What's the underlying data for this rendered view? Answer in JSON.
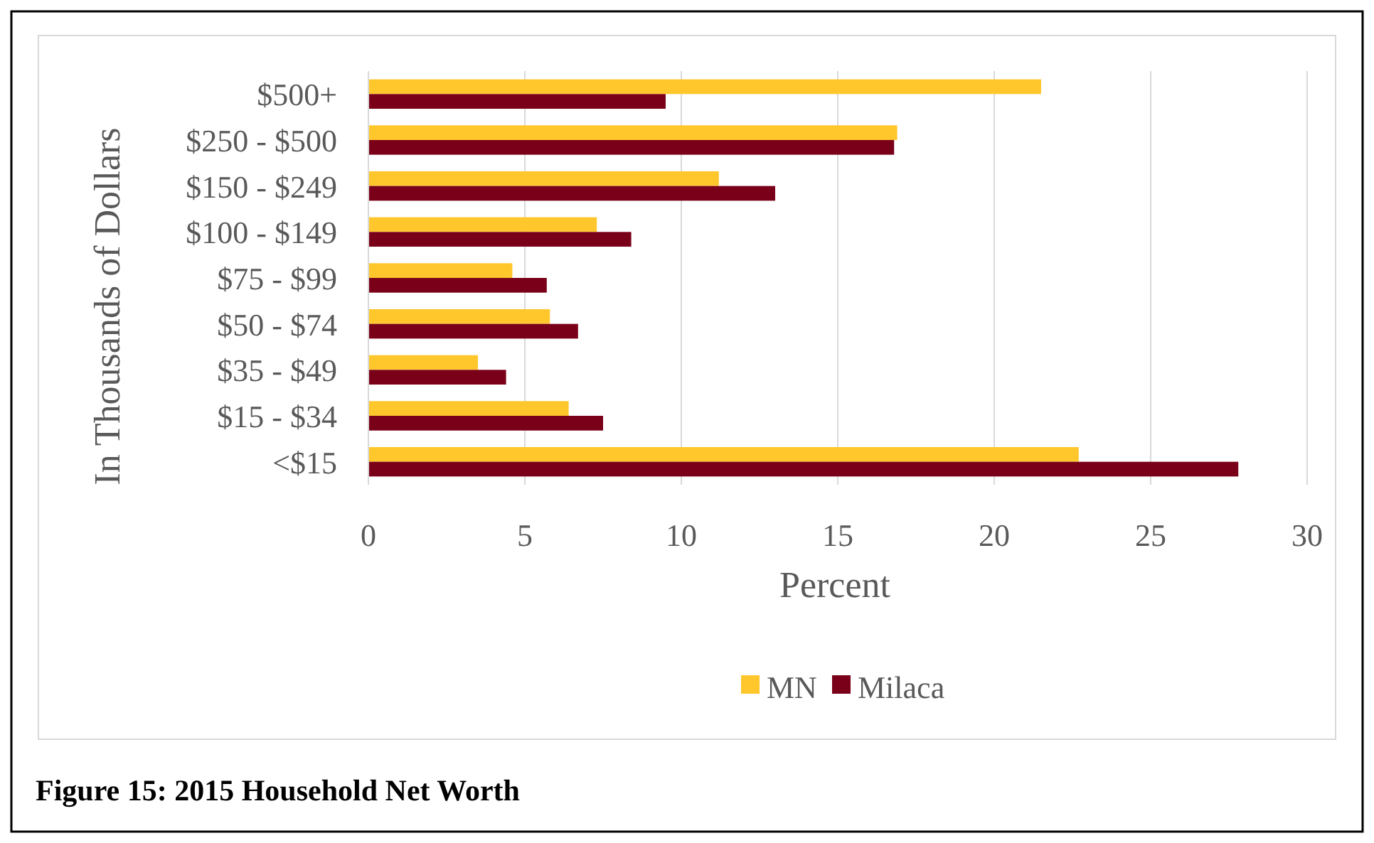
{
  "chart_data": {
    "type": "bar",
    "orientation": "horizontal",
    "xlabel": "Percent",
    "ylabel": "In Thousands of Dollars",
    "categories": [
      "$500+",
      "$250 - $500",
      "$150 - $249",
      "$100 - $149",
      "$75 - $99",
      "$50 - $74",
      "$35 - $49",
      "$15 - $34",
      "<$15"
    ],
    "series": [
      {
        "name": "MN",
        "color": "#ffc72c",
        "values": [
          21.5,
          16.9,
          11.2,
          7.3,
          4.6,
          5.8,
          3.5,
          6.4,
          22.7
        ]
      },
      {
        "name": "Milaca",
        "color": "#7a0019",
        "values": [
          9.5,
          16.8,
          13.0,
          8.4,
          5.7,
          6.7,
          4.4,
          7.5,
          27.8
        ]
      }
    ],
    "xlim": [
      0,
      30
    ],
    "xticks": [
      0,
      5,
      10,
      15,
      20,
      25,
      30
    ],
    "grid": "x",
    "legend": "bottom",
    "annotations": [
      "Figure 15: 2015 Household Net Worth"
    ]
  }
}
